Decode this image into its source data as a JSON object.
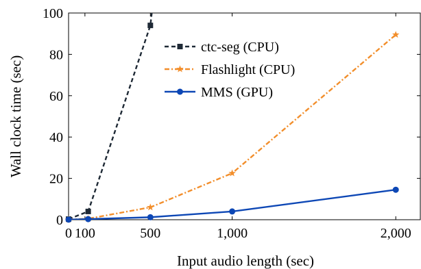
{
  "chart_data": {
    "type": "line",
    "title": "",
    "xlabel": "Input audio length (sec)",
    "ylabel": "Wall clock time (sec)",
    "xlim": [
      0,
      2150
    ],
    "ylim": [
      0,
      100
    ],
    "x_ticks": [
      0,
      100,
      500,
      1000,
      2000
    ],
    "x_tick_labels": [
      "0",
      "100",
      "500",
      "1,000",
      "2,000"
    ],
    "y_ticks": [
      0,
      20,
      40,
      60,
      80,
      100
    ],
    "y_tick_labels": [
      "0",
      "20",
      "40",
      "60",
      "80",
      "100"
    ],
    "grid": false,
    "legend_position": "top-center",
    "series": [
      {
        "name": "ctc-seg (CPU)",
        "color": "#1f2a36",
        "line_style": "dashed",
        "marker": "square",
        "points": [
          [
            0,
            0.3
          ],
          [
            120,
            4.0
          ],
          [
            500,
            94.0
          ],
          [
            510,
            101
          ]
        ]
      },
      {
        "name": "Flashlight (CPU)",
        "color": "#f28e2b",
        "line_style": "dash-dot",
        "marker": "star",
        "points": [
          [
            0,
            0.1
          ],
          [
            120,
            0.5
          ],
          [
            500,
            6.0
          ],
          [
            1000,
            22.5
          ],
          [
            2000,
            89.5
          ]
        ]
      },
      {
        "name": "MMS (GPU)",
        "color": "#0d47b5",
        "line_style": "solid",
        "marker": "circle",
        "points": [
          [
            0,
            0.05
          ],
          [
            120,
            0.3
          ],
          [
            500,
            1.2
          ],
          [
            1000,
            4.0
          ],
          [
            2000,
            14.5
          ]
        ]
      }
    ]
  }
}
